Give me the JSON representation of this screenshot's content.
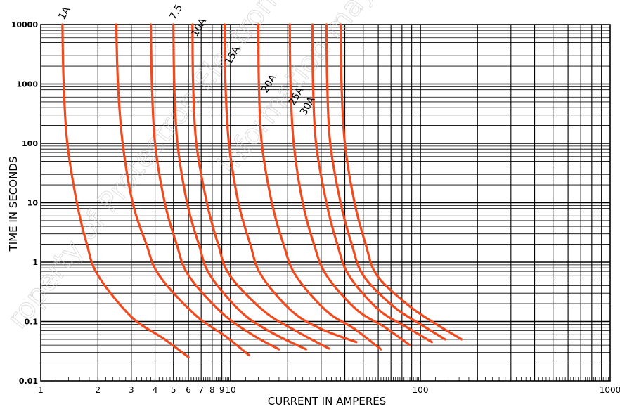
{
  "chart_data": {
    "type": "line",
    "title": "",
    "xlabel": "CURRENT IN AMPERES",
    "ylabel": "TIME IN SECONDS",
    "x_scale": "log",
    "y_scale": "log",
    "xlim": [
      1,
      1000
    ],
    "ylim": [
      0.01,
      10000
    ],
    "grid": true,
    "x_tick_labels": [
      {
        "value": 1,
        "label": "1"
      },
      {
        "value": 2,
        "label": "2"
      },
      {
        "value": 3,
        "label": "3"
      },
      {
        "value": 4,
        "label": "4"
      },
      {
        "value": 5,
        "label": "5"
      },
      {
        "value": 6,
        "label": "6"
      },
      {
        "value": 7,
        "label": "7"
      },
      {
        "value": 8,
        "label": "8"
      },
      {
        "value": 9,
        "label": "9"
      },
      {
        "value": 10,
        "label": "10"
      },
      {
        "value": 100,
        "label": "100"
      },
      {
        "value": 1000,
        "label": "1000"
      }
    ],
    "y_tick_labels": [
      {
        "value": 0.01,
        "label": "0.01"
      },
      {
        "value": 0.1,
        "label": "0.1"
      },
      {
        "value": 1,
        "label": "1"
      },
      {
        "value": 10,
        "label": "10"
      },
      {
        "value": 100,
        "label": "100"
      },
      {
        "value": 1000,
        "label": "1000"
      },
      {
        "value": 10000,
        "label": "10000"
      }
    ],
    "series": [
      {
        "name": "1A",
        "points": [
          [
            1.3,
            10000
          ],
          [
            1.32,
            1000
          ],
          [
            1.38,
            100
          ],
          [
            1.55,
            10
          ],
          [
            1.75,
            2
          ],
          [
            2,
            0.6
          ],
          [
            3,
            0.12
          ],
          [
            4.5,
            0.05
          ],
          [
            6,
            0.025
          ]
        ]
      },
      {
        "name": "",
        "points": [
          [
            2.5,
            10000
          ],
          [
            2.55,
            1000
          ],
          [
            2.7,
            100
          ],
          [
            3.05,
            10
          ],
          [
            3.6,
            2
          ],
          [
            4.2,
            0.6
          ],
          [
            6.5,
            0.13
          ],
          [
            9.5,
            0.055
          ],
          [
            12.5,
            0.027
          ]
        ]
      },
      {
        "name": "",
        "points": [
          [
            3.8,
            10000
          ],
          [
            3.85,
            1000
          ],
          [
            4,
            100
          ],
          [
            4.5,
            10
          ],
          [
            5.2,
            2
          ],
          [
            6,
            0.6
          ],
          [
            9,
            0.14
          ],
          [
            13,
            0.06
          ],
          [
            18,
            0.034
          ]
        ]
      },
      {
        "name": "7.5",
        "points": [
          [
            5,
            10000
          ],
          [
            5.05,
            1000
          ],
          [
            5.25,
            100
          ],
          [
            5.9,
            10
          ],
          [
            6.8,
            2
          ],
          [
            7.8,
            0.6
          ],
          [
            11.5,
            0.14
          ],
          [
            16.5,
            0.065
          ],
          [
            25,
            0.034
          ]
        ]
      },
      {
        "name": "10A",
        "points": [
          [
            6.3,
            10000
          ],
          [
            6.35,
            1000
          ],
          [
            6.6,
            100
          ],
          [
            7.5,
            10
          ],
          [
            8.6,
            2
          ],
          [
            9.9,
            0.6
          ],
          [
            15,
            0.15
          ],
          [
            22,
            0.07
          ],
          [
            33,
            0.035
          ]
        ]
      },
      {
        "name": "15A",
        "points": [
          [
            9.3,
            10000
          ],
          [
            9.4,
            1000
          ],
          [
            9.8,
            100
          ],
          [
            11,
            10
          ],
          [
            12.7,
            2
          ],
          [
            14.5,
            0.6
          ],
          [
            21,
            0.15
          ],
          [
            30,
            0.075
          ],
          [
            46,
            0.045
          ]
        ]
      },
      {
        "name": "20A",
        "points": [
          [
            14,
            10000
          ],
          [
            14.1,
            1000
          ],
          [
            14.6,
            100
          ],
          [
            16.5,
            10
          ],
          [
            19,
            2
          ],
          [
            22,
            0.6
          ],
          [
            32,
            0.15
          ],
          [
            45,
            0.075
          ],
          [
            62,
            0.034
          ]
        ]
      },
      {
        "name": "25A",
        "points": [
          [
            20.5,
            10000
          ],
          [
            20.7,
            1000
          ],
          [
            21.5,
            100
          ],
          [
            24,
            10
          ],
          [
            27.5,
            2
          ],
          [
            32,
            0.6
          ],
          [
            46,
            0.16
          ],
          [
            65,
            0.08
          ],
          [
            88,
            0.04
          ]
        ]
      },
      {
        "name": "30A",
        "points": [
          [
            27,
            10000
          ],
          [
            27.2,
            1000
          ],
          [
            28.2,
            100
          ],
          [
            32,
            10
          ],
          [
            36.5,
            2
          ],
          [
            42,
            0.6
          ],
          [
            60,
            0.16
          ],
          [
            85,
            0.08
          ],
          [
            115,
            0.045
          ]
        ]
      },
      {
        "name": "",
        "points": [
          [
            32,
            10000
          ],
          [
            32.3,
            1000
          ],
          [
            33.5,
            100
          ],
          [
            38,
            10
          ],
          [
            43.5,
            2
          ],
          [
            50,
            0.6
          ],
          [
            72,
            0.18
          ],
          [
            100,
            0.09
          ],
          [
            135,
            0.05
          ]
        ]
      },
      {
        "name": "",
        "points": [
          [
            38,
            10000
          ],
          [
            38.4,
            1000
          ],
          [
            40,
            100
          ],
          [
            45,
            10
          ],
          [
            51.5,
            2
          ],
          [
            59,
            0.6
          ],
          [
            86,
            0.19
          ],
          [
            118,
            0.095
          ],
          [
            165,
            0.05
          ]
        ]
      }
    ],
    "colors": {
      "curve": "#f04a1e",
      "grid": "#000000"
    }
  },
  "watermark": {
    "line1": "roperty of Protectron Electromec",
    "line2": "information may"
  }
}
